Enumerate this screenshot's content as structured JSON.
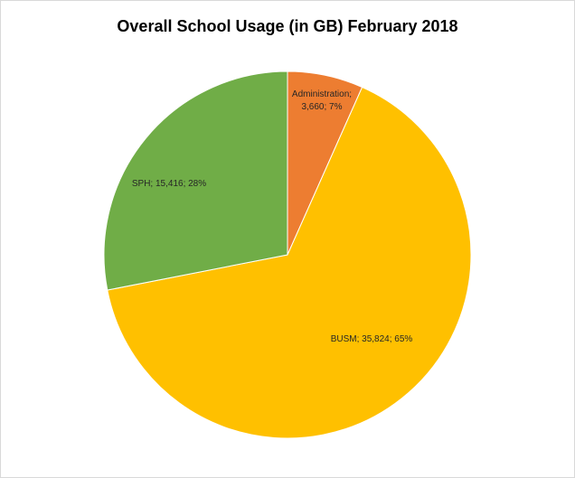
{
  "chart_data": {
    "type": "pie",
    "title": "Overall School Usage (in GB) February 2018",
    "slices": [
      {
        "name": "Administration",
        "value": 3660,
        "percent": 7,
        "color": "#ed7d31",
        "label_lines": [
          "Administration;",
          "3,660; 7%"
        ]
      },
      {
        "name": "BUSM",
        "value": 35824,
        "percent": 65,
        "color": "#ffc000",
        "label_lines": [
          "BUSM; 35,824; 65%"
        ]
      },
      {
        "name": "SPH",
        "value": 15416,
        "percent": 28,
        "color": "#70ad47",
        "label_lines": [
          "SPH; 15,416; 28%"
        ]
      }
    ],
    "start_angle": "12 o'clock, clockwise",
    "legend": "none"
  }
}
